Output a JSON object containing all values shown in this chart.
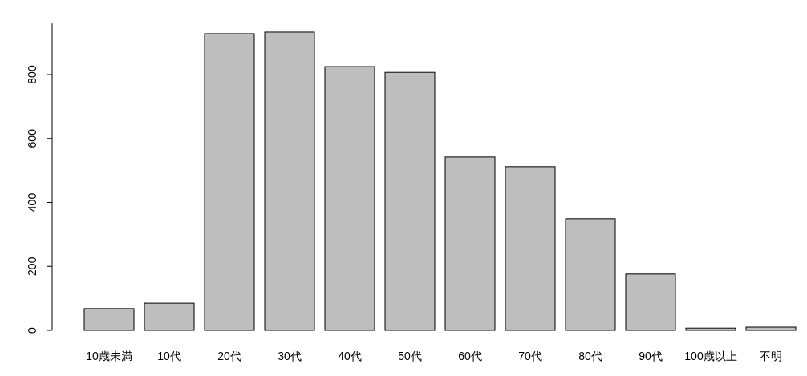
{
  "chart_data": {
    "type": "bar",
    "categories": [
      "10歳未満",
      "10代",
      "20代",
      "30代",
      "40代",
      "50代",
      "60代",
      "70代",
      "80代",
      "90代",
      "100歳以上",
      "不明"
    ],
    "values": [
      68,
      85,
      928,
      933,
      825,
      807,
      542,
      512,
      349,
      176,
      7,
      10
    ],
    "color": "#bebebe",
    "ylim": [
      0,
      960
    ],
    "yticks": [
      0,
      200,
      400,
      600,
      800
    ]
  }
}
